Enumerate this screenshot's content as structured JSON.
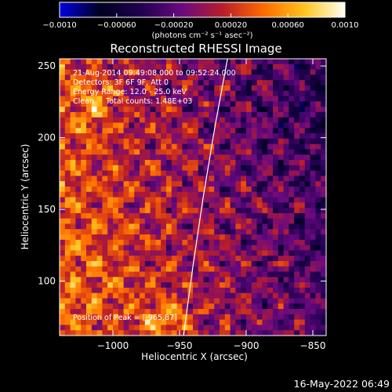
{
  "chart_data": {
    "type": "heatmap",
    "title": "Reconstructed RHESSI Image",
    "xlabel": "Heliocentric X (arcsec)",
    "ylabel": "Heliocentric Y (arcsec)",
    "xlim": [
      -1040,
      -840
    ],
    "ylim": [
      62,
      255
    ],
    "xticks": [
      {
        "value": -1000,
        "label": "−1000"
      },
      {
        "value": -950,
        "label": "−950"
      },
      {
        "value": -900,
        "label": "−900"
      },
      {
        "value": -850,
        "label": "−850"
      }
    ],
    "yticks": [
      {
        "value": 100,
        "label": "100"
      },
      {
        "value": 150,
        "label": "150"
      },
      {
        "value": 200,
        "label": "200"
      },
      {
        "value": 250,
        "label": "250"
      }
    ],
    "colorbar": {
      "range": [
        -0.001,
        0.001
      ],
      "ticks": [
        {
          "value": -0.001,
          "label": "−0.0010"
        },
        {
          "value": -0.0006,
          "label": "−0.00060"
        },
        {
          "value": -0.0002,
          "label": "−0.00020"
        },
        {
          "value": 0.0002,
          "label": "0.00020"
        },
        {
          "value": 0.0006,
          "label": "0.00060"
        },
        {
          "value": 0.001,
          "label": "0.0010"
        }
      ],
      "unit_label": "(photons cm⁻² s⁻¹ asec⁻²)",
      "colors": [
        "#0000e0",
        "#000020",
        "#200050",
        "#6a0a80",
        "#b81d2a",
        "#ff6a00",
        "#ffc31e",
        "#fffff4"
      ]
    },
    "annotations": [
      "21-Aug-2014 09:49:08.000 to 09:52:24.000",
      "Detectors: 3F 6F 9F, Att 0",
      "Energy Range: 12.0 - 25.0 keV",
      "Clean     Total counts: 1.48E+03"
    ],
    "peak_label": "Position of Peak = [-965,87]",
    "limb_curve": [
      [
        -947,
        62
      ],
      [
        -940,
        110
      ],
      [
        -932,
        160
      ],
      [
        -923,
        210
      ],
      [
        -914,
        255
      ]
    ],
    "footer_timestamp": "16-May-2022 06:49",
    "noise_seed": 20140821
  }
}
